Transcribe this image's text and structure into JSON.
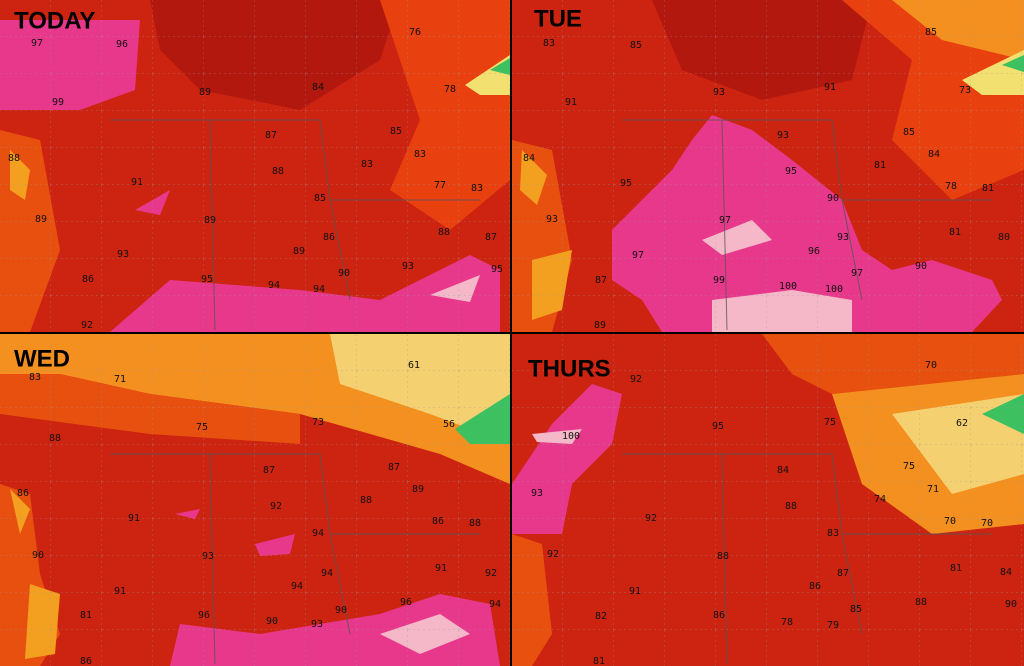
{
  "panels": [
    {
      "label": "TODAY",
      "temps": [
        97,
        96,
        76,
        84,
        78,
        89,
        99,
        87,
        85,
        83,
        88,
        91,
        88,
        83,
        77,
        83,
        85,
        89,
        89,
        88,
        87,
        86,
        93,
        89,
        93,
        95,
        86,
        95,
        90,
        94,
        94,
        92
      ]
    },
    {
      "label": "TUE",
      "temps": [
        83,
        85,
        85,
        93,
        91,
        73,
        91,
        93,
        85,
        84,
        84,
        95,
        95,
        81,
        78,
        81,
        90,
        93,
        97,
        81,
        80,
        93,
        97,
        96,
        90,
        97,
        99,
        100,
        100,
        87,
        89
      ]
    },
    {
      "label": "WED",
      "temps": [
        83,
        71,
        61,
        88,
        75,
        73,
        56,
        87,
        87,
        86,
        91,
        88,
        89,
        92,
        86,
        88,
        94,
        90,
        93,
        91,
        92,
        94,
        91,
        94,
        96,
        94,
        81,
        96,
        90,
        90,
        93,
        86
      ]
    },
    {
      "label": "THURS",
      "temps": [
        92,
        70,
        100,
        95,
        75,
        62,
        84,
        75,
        71,
        93,
        92,
        88,
        74,
        70,
        70,
        83,
        92,
        88,
        81,
        84,
        87,
        91,
        86,
        88,
        90,
        82,
        86,
        78,
        85,
        79,
        81
      ]
    }
  ]
}
